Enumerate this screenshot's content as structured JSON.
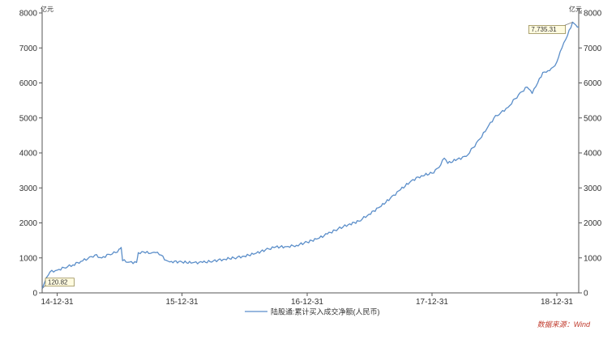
{
  "chart_data": {
    "type": "line",
    "unit_left": "亿元",
    "unit_right": "亿元",
    "ylim": [
      0,
      8000
    ],
    "yticks": [
      0,
      1000,
      2000,
      3000,
      4000,
      5000,
      6000,
      7000,
      8000
    ],
    "xlim": [
      "2014-11-17",
      "2019-03-05"
    ],
    "xticks": [
      {
        "date": "2014-12-31",
        "label": "14-12-31"
      },
      {
        "date": "2015-12-31",
        "label": "15-12-31"
      },
      {
        "date": "2016-12-31",
        "label": "16-12-31"
      },
      {
        "date": "2017-12-31",
        "label": "17-12-31"
      },
      {
        "date": "2018-12-31",
        "label": "18-12-31"
      }
    ],
    "grid": false,
    "legend": "bottom-center",
    "series": [
      {
        "name": "陆股通:累计买入成交净额(人民币)",
        "color": "#5b8ec9",
        "points": [
          [
            "2014-11-17",
            120.82
          ],
          [
            "2014-11-25",
            320
          ],
          [
            "2014-12-10",
            600
          ],
          [
            "2014-12-31",
            650
          ],
          [
            "2015-01-20",
            720
          ],
          [
            "2015-02-15",
            800
          ],
          [
            "2015-03-10",
            900
          ],
          [
            "2015-03-31",
            980
          ],
          [
            "2015-04-20",
            1080
          ],
          [
            "2015-05-10",
            1000
          ],
          [
            "2015-05-31",
            1100
          ],
          [
            "2015-06-20",
            1150
          ],
          [
            "2015-06-30",
            1250
          ],
          [
            "2015-07-06",
            1300
          ],
          [
            "2015-07-10",
            920
          ],
          [
            "2015-07-31",
            880
          ],
          [
            "2015-08-20",
            870
          ],
          [
            "2015-08-25",
            1150
          ],
          [
            "2015-09-10",
            1170
          ],
          [
            "2015-09-30",
            1130
          ],
          [
            "2015-10-15",
            1150
          ],
          [
            "2015-10-31",
            1080
          ],
          [
            "2015-11-15",
            930
          ],
          [
            "2015-11-30",
            900
          ],
          [
            "2015-12-31",
            880
          ],
          [
            "2016-01-31",
            860
          ],
          [
            "2016-02-29",
            870
          ],
          [
            "2016-03-31",
            910
          ],
          [
            "2016-04-30",
            960
          ],
          [
            "2016-05-31",
            1000
          ],
          [
            "2016-06-30",
            1050
          ],
          [
            "2016-07-31",
            1120
          ],
          [
            "2016-08-31",
            1230
          ],
          [
            "2016-09-30",
            1310
          ],
          [
            "2016-10-31",
            1320
          ],
          [
            "2016-11-30",
            1360
          ],
          [
            "2016-12-31",
            1450
          ],
          [
            "2017-01-31",
            1550
          ],
          [
            "2017-02-28",
            1680
          ],
          [
            "2017-03-31",
            1830
          ],
          [
            "2017-04-30",
            1950
          ],
          [
            "2017-05-31",
            2050
          ],
          [
            "2017-06-30",
            2250
          ],
          [
            "2017-07-31",
            2450
          ],
          [
            "2017-08-31",
            2700
          ],
          [
            "2017-09-30",
            2950
          ],
          [
            "2017-10-31",
            3200
          ],
          [
            "2017-11-30",
            3350
          ],
          [
            "2017-12-31",
            3420
          ],
          [
            "2018-01-20",
            3580
          ],
          [
            "2018-02-05",
            3850
          ],
          [
            "2018-02-15",
            3700
          ],
          [
            "2018-03-15",
            3820
          ],
          [
            "2018-04-10",
            3900
          ],
          [
            "2018-04-30",
            4150
          ],
          [
            "2018-05-20",
            4400
          ],
          [
            "2018-06-10",
            4700
          ],
          [
            "2018-06-30",
            5000
          ],
          [
            "2018-07-20",
            5150
          ],
          [
            "2018-08-10",
            5300
          ],
          [
            "2018-08-31",
            5550
          ],
          [
            "2018-09-20",
            5750
          ],
          [
            "2018-10-05",
            5880
          ],
          [
            "2018-10-20",
            5700
          ],
          [
            "2018-11-05",
            6000
          ],
          [
            "2018-11-20",
            6300
          ],
          [
            "2018-12-05",
            6350
          ],
          [
            "2018-12-20",
            6450
          ],
          [
            "2018-12-31",
            6600
          ],
          [
            "2019-01-15",
            7000
          ],
          [
            "2019-01-31",
            7350
          ],
          [
            "2019-02-15",
            7735.31
          ],
          [
            "2019-02-25",
            7650
          ],
          [
            "2019-03-05",
            7600
          ]
        ]
      }
    ],
    "annotations": [
      {
        "text": "120.82",
        "date": "2014-11-17",
        "value": 120.82
      },
      {
        "text": "7,735.31",
        "date": "2019-02-15",
        "value": 7735.31
      }
    ]
  },
  "source": "数据来源：Wind"
}
